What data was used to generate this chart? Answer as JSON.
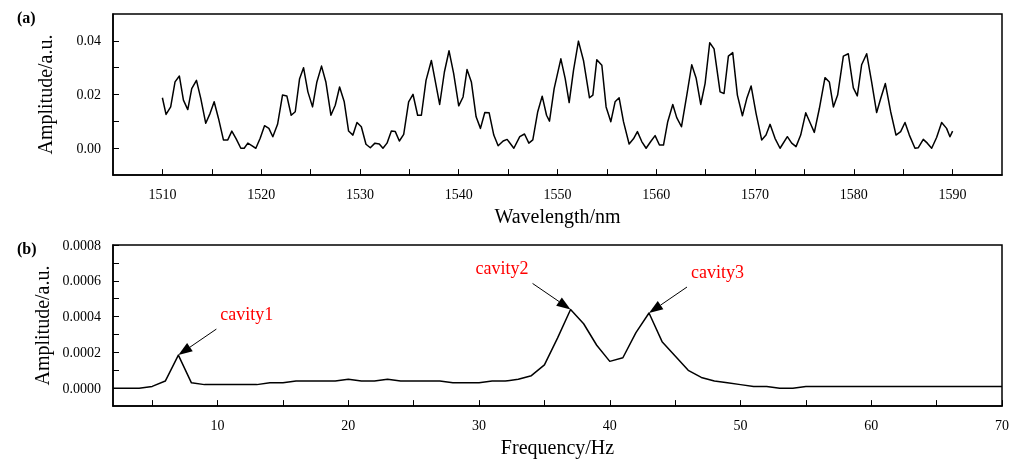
{
  "chart_data": [
    {
      "type": "line",
      "title": "(a)",
      "xlabel": "Wavelength/nm",
      "ylabel": "Amplitude/a.u.",
      "xlim": [
        1505,
        1595
      ],
      "ylim": [
        -0.01,
        0.05
      ],
      "xticks": [
        1510,
        {
          "value": 1515,
          "label": null
        },
        1520,
        {
          "value": 1525,
          "label": null
        },
        1530,
        {
          "value": 1535,
          "label": null
        },
        1540,
        {
          "value": 1545,
          "label": null
        },
        1550,
        {
          "value": 1555,
          "label": null
        },
        1560,
        {
          "value": 1565,
          "label": null
        },
        1570,
        {
          "value": 1575,
          "label": null
        },
        1580,
        {
          "value": 1585,
          "label": null
        },
        1590
      ],
      "yticks": [
        {
          "value": 0,
          "label": "0.00"
        },
        {
          "value": 0.01,
          "label": null
        },
        {
          "value": 0.02,
          "label": "0.02"
        },
        {
          "value": 0.03,
          "label": null
        },
        {
          "value": 0.04,
          "label": "0.04"
        }
      ],
      "marker": "none",
      "line_style": "solid",
      "series": [
        {
          "color": "#000000",
          "x": [
            1510,
            1510.37,
            1510.84,
            1511.28,
            1511.72,
            1512.13,
            1512.57,
            1512.97,
            1513.45,
            1513.89,
            1514.39,
            1514.83,
            1515.24,
            1515.68,
            1516.18,
            1516.62,
            1517.03,
            1517.47,
            1517.94,
            1518.28,
            1518.65,
            1519.05,
            1519.46,
            1519.9,
            1520.34,
            1520.78,
            1521.18,
            1521.66,
            1522.16,
            1522.6,
            1523.04,
            1523.45,
            1523.89,
            1524.29,
            1524.73,
            1525.2,
            1525.64,
            1526.11,
            1526.55,
            1527.06,
            1527.5,
            1527.94,
            1528.41,
            1528.85,
            1529.29,
            1529.7,
            1530.14,
            1530.61,
            1531.05,
            1531.52,
            1531.96,
            1532.33,
            1532.74,
            1533.18,
            1533.58,
            1533.99,
            1534.43,
            1534.93,
            1535.37,
            1535.84,
            1536.22,
            1536.69,
            1537.23,
            1537.64,
            1538.07,
            1538.55,
            1539.02,
            1539.49,
            1540,
            1540.44,
            1540.84,
            1541.28,
            1541.76,
            1542.2,
            1542.64,
            1543.08,
            1543.55,
            1543.99,
            1544.5,
            1544.9,
            1545.58,
            1546.18,
            1546.66,
            1547.1,
            1547.5,
            1548,
            1548.45,
            1548.89,
            1549.19,
            1549.66,
            1550.34,
            1550.78,
            1551.18,
            1551.62,
            1552.12,
            1552.63,
            1553.24,
            1553.58,
            1553.98,
            1554.49,
            1554.92,
            1555.4,
            1555.83,
            1556.24,
            1556.68,
            1557.25,
            1557.69,
            1558.09,
            1558.53,
            1558.97,
            1559.44,
            1559.88,
            1560.32,
            1560.73,
            1561.16,
            1561.67,
            1562.07,
            1562.55,
            1563.09,
            1563.59,
            1564.03,
            1564.5,
            1564.94,
            1565.41,
            1565.85,
            1566.46,
            1566.86,
            1567.3,
            1567.74,
            1568.21,
            1568.72,
            1569.16,
            1569.6,
            1570.1,
            1570.67,
            1571.11,
            1571.52,
            1572.02,
            1572.53,
            1573.27,
            1573.71,
            1574.15,
            1574.62,
            1575.13,
            1575.56,
            1576,
            1576.51,
            1577.08,
            1577.52,
            1577.93,
            1578.36,
            1578.94,
            1579.44,
            1579.95,
            1580.35,
            1580.79,
            1581.3,
            1581.8,
            1582.31,
            1582.72,
            1583.19,
            1583.73,
            1584.27,
            1584.74,
            1585.18,
            1585.62,
            1586.19,
            1586.53,
            1587.03,
            1587.44,
            1587.88,
            1588.38,
            1588.89,
            1589.39,
            1589.73,
            1590
          ],
          "values": [
            0.0188,
            0.0126,
            0.0154,
            0.0247,
            0.0269,
            0.0179,
            0.0144,
            0.0222,
            0.0253,
            0.0185,
            0.0093,
            0.013,
            0.0173,
            0.0111,
            0.0031,
            0.0031,
            0.0064,
            0.0035,
            0,
            0,
            0.0019,
            0.001,
            0,
            0.0037,
            0.0084,
            0.0074,
            0.0043,
            0.0089,
            0.0198,
            0.0195,
            0.0123,
            0.0136,
            0.0259,
            0.03,
            0.021,
            0.0154,
            0.0247,
            0.0306,
            0.0247,
            0.0123,
            0.016,
            0.0228,
            0.0173,
            0.0064,
            0.0049,
            0.0096,
            0.008,
            0.0015,
            0.0002,
            0.0019,
            0.0016,
            0,
            0.0019,
            0.0064,
            0.0062,
            0.0027,
            0.0052,
            0.0173,
            0.0201,
            0.0123,
            0.0123,
            0.0253,
            0.0327,
            0.0247,
            0.0163,
            0.0284,
            0.0363,
            0.0278,
            0.0158,
            0.0191,
            0.0293,
            0.0247,
            0.0117,
            0.0074,
            0.0133,
            0.0132,
            0.0049,
            0.0009,
            0.0027,
            0.0033,
            0,
            0.0043,
            0.0053,
            0.0019,
            0.0031,
            0.0136,
            0.0194,
            0.0123,
            0.0101,
            0.0222,
            0.0333,
            0.0259,
            0.017,
            0.029,
            0.0399,
            0.0327,
            0.0188,
            0.0198,
            0.033,
            0.0309,
            0.0154,
            0.0099,
            0.0173,
            0.0188,
            0.0099,
            0.0016,
            0.0035,
            0.0062,
            0.0025,
            0,
            0.0025,
            0.0047,
            0.0012,
            0.0012,
            0.0099,
            0.0163,
            0.0114,
            0.008,
            0.0198,
            0.0311,
            0.0262,
            0.0163,
            0.0241,
            0.0393,
            0.037,
            0.021,
            0.0204,
            0.0343,
            0.0356,
            0.0198,
            0.0121,
            0.0185,
            0.0232,
            0.013,
            0.0031,
            0.0049,
            0.0089,
            0.0037,
            0,
            0.0043,
            0.0019,
            0.0006,
            0.0049,
            0.0132,
            0.0096,
            0.0059,
            0.0148,
            0.0263,
            0.0247,
            0.0154,
            0.0198,
            0.0343,
            0.0352,
            0.0225,
            0.0195,
            0.0311,
            0.0352,
            0.0247,
            0.0133,
            0.0185,
            0.0241,
            0.0136,
            0.0049,
            0.0062,
            0.0096,
            0.0049,
            0,
            0.0002,
            0.0033,
            0.0019,
            0,
            0.004,
            0.0096,
            0.0074,
            0.0043,
            0.0064
          ]
        }
      ]
    },
    {
      "type": "line",
      "title": "(b)",
      "xlabel": "Frequency/Hz",
      "ylabel": "Amplitude/a.u.",
      "xlim": [
        2,
        70
      ],
      "ylim": [
        -0.0001,
        0.0008
      ],
      "xticks": [
        {
          "value": 5,
          "label": null
        },
        10,
        {
          "value": 15,
          "label": null
        },
        20,
        {
          "value": 25,
          "label": null
        },
        30,
        {
          "value": 35,
          "label": null
        },
        40,
        {
          "value": 45,
          "label": null
        },
        50,
        {
          "value": 55,
          "label": null
        },
        60,
        {
          "value": 65,
          "label": null
        },
        70
      ],
      "yticks": [
        {
          "value": 0,
          "label": "0.0000"
        },
        {
          "value": 0.0001,
          "label": null
        },
        {
          "value": 0.0002,
          "label": "0.0002"
        },
        {
          "value": 0.0003,
          "label": null
        },
        {
          "value": 0.0004,
          "label": "0.0004"
        },
        {
          "value": 0.0005,
          "label": null
        },
        {
          "value": 0.0006,
          "label": "0.0006"
        },
        {
          "value": 0.0007,
          "label": null
        },
        {
          "value": 0.0008,
          "label": "0.0008"
        }
      ],
      "marker": "none",
      "line_style": "solid",
      "annotations": [
        {
          "text": "cavity1",
          "x": 7,
          "y": 0.000185
        },
        {
          "text": "cavity2",
          "x": 37,
          "y": 0.00044
        },
        {
          "text": "cavity3",
          "x": 43,
          "y": 0.00042
        }
      ],
      "series": [
        {
          "color": "#000000",
          "x": [
            2,
            3,
            4,
            5,
            6,
            7,
            8,
            9,
            10,
            11,
            12,
            13,
            14,
            15,
            16,
            17,
            18,
            19,
            20,
            21,
            22,
            23,
            24,
            25,
            26,
            27,
            28,
            29,
            30,
            31,
            32,
            33,
            34,
            35,
            36,
            37,
            38,
            39,
            40,
            41,
            42,
            43,
            44,
            45,
            46,
            47,
            48,
            49,
            50,
            51,
            52,
            53,
            54,
            55,
            56,
            57,
            58,
            59,
            60,
            61,
            62,
            63,
            64,
            65,
            66,
            67,
            68,
            69,
            70
          ],
          "values": [
            0,
            0,
            0,
            1e-05,
            4e-05,
            0.000185,
            3e-05,
            2e-05,
            2e-05,
            2e-05,
            2e-05,
            2e-05,
            3e-05,
            3e-05,
            4e-05,
            4e-05,
            4e-05,
            4e-05,
            5e-05,
            4e-05,
            4e-05,
            5e-05,
            4e-05,
            4e-05,
            4e-05,
            4e-05,
            3e-05,
            3e-05,
            3e-05,
            4e-05,
            4e-05,
            5e-05,
            7e-05,
            0.00013,
            0.00028,
            0.00044,
            0.00036,
            0.00024,
            0.00015,
            0.00017,
            0.00031,
            0.00042,
            0.00026,
            0.00018,
            0.0001,
            6e-05,
            4e-05,
            3e-05,
            2e-05,
            1e-05,
            1e-05,
            0,
            0,
            1e-05,
            1e-05,
            1e-05,
            1e-05,
            1e-05,
            1e-05,
            1e-05,
            1e-05,
            1e-05,
            1e-05,
            1e-05,
            1e-05,
            1e-05,
            1e-05,
            1e-05,
            1e-05
          ]
        }
      ]
    }
  ]
}
